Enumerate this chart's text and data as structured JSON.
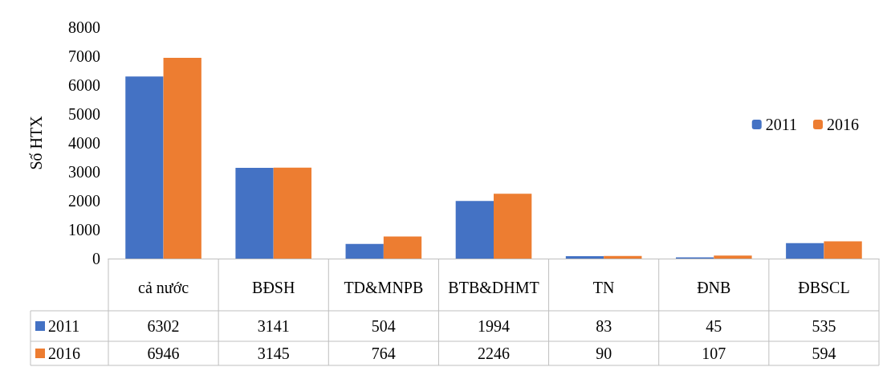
{
  "chart_data": {
    "type": "bar",
    "ylabel": "Số HTX",
    "categories": [
      "cả nước",
      "BĐSH",
      "TD&MNPB",
      "BTB&DHMT",
      "TN",
      "ĐNB",
      "ĐBSCL"
    ],
    "series": [
      {
        "name": "2011",
        "color": "#4472c4",
        "values": [
          6302,
          3141,
          504,
          1994,
          83,
          45,
          535
        ]
      },
      {
        "name": "2016",
        "color": "#ed7d31",
        "values": [
          6946,
          3145,
          764,
          2246,
          90,
          107,
          594
        ]
      }
    ],
    "ylim": [
      0,
      8000
    ],
    "yticks": [
      0,
      1000,
      2000,
      3000,
      4000,
      5000,
      6000,
      7000,
      8000
    ],
    "legend": "right",
    "data_labels": true
  }
}
